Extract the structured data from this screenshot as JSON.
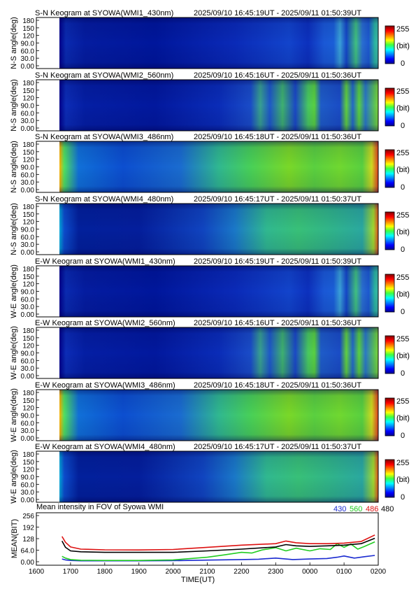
{
  "panels": [
    {
      "title": "S-N Keogram at SYOWA(WMI1_430nm)",
      "timerange": "2025/09/10 16:45:19UT - 2025/09/11 01:50:39UT",
      "ylabel": "N-S angle(deg)",
      "profile": "faint"
    },
    {
      "title": "S-N Keogram at SYOWA(WMI2_560nm)",
      "timerange": "2025/09/10 16:45:16UT - 2025/09/11 01:50:36UT",
      "ylabel": "N-S angle(deg)",
      "profile": "aurora"
    },
    {
      "title": "S-N Keogram at SYOWA(WMI3_486nm)",
      "timerange": "2025/09/10 16:45:18UT - 2025/09/11 01:50:36UT",
      "ylabel": "N-S angle(deg)",
      "profile": "bright"
    },
    {
      "title": "S-N Keogram at SYOWA(WMI4_480nm)",
      "timerange": "2025/09/10 16:45:17UT - 2025/09/11 01:50:37UT",
      "ylabel": "N-S angle(deg)",
      "profile": "medium"
    },
    {
      "title": "E-W Keogram at SYOWA(WMI1_430nm)",
      "timerange": "2025/09/10 16:45:19UT - 2025/09/11 01:50:39UT",
      "ylabel": "W-E angle(deg)",
      "profile": "faint"
    },
    {
      "title": "E-W Keogram at SYOWA(WMI2_560nm)",
      "timerange": "2025/09/10 16:45:16UT - 2025/09/11 01:50:36UT",
      "ylabel": "W-E angle(deg)",
      "profile": "aurora"
    },
    {
      "title": "E-W Keogram at SYOWA(WMI3_486nm)",
      "timerange": "2025/09/10 16:45:18UT - 2025/09/11 01:50:36UT",
      "ylabel": "W-E angle(deg)",
      "profile": "bright"
    },
    {
      "title": "E-W Keogram at SYOWA(WMI4_480nm)",
      "timerange": "2025/09/10 16:45:17UT - 2025/09/11 01:50:37UT",
      "ylabel": "W-E angle(deg)",
      "profile": "medium"
    }
  ],
  "keogram_yticks": [
    "0.00",
    "30.0",
    "60.0",
    "90.0",
    "120",
    "150",
    "180"
  ],
  "colorbar": {
    "max": "255",
    "unit": "(bit)",
    "min": "0"
  },
  "colors": {
    "430": "#1a2ad0",
    "560": "#22cc22",
    "486": "#dd1111",
    "480": "#000000"
  },
  "chart_data": {
    "type": "line",
    "title": "Mean intensity in FOV of Syowa WMI",
    "xlabel": "TIME(UT)",
    "ylabel": "MEAN(BIT)",
    "xticks": [
      "1600",
      "1700",
      "1800",
      "1900",
      "2000",
      "2100",
      "2200",
      "2300",
      "0000",
      "0100",
      "0200"
    ],
    "yticks": [
      "0.00",
      "64.0",
      "128",
      "192",
      "256"
    ],
    "xlim": [
      0,
      10
    ],
    "ylim": [
      0,
      256
    ],
    "series": [
      {
        "name": "430",
        "color": "#1a2ad0",
        "x": [
          0.75,
          0.85,
          1.0,
          1.3,
          2.0,
          3.0,
          4.0,
          5.0,
          6.0,
          6.5,
          7.0,
          7.5,
          8.0,
          8.5,
          8.8,
          9.0,
          9.3,
          9.6,
          9.9
        ],
        "y": [
          15,
          10,
          7,
          5,
          5,
          5,
          6,
          9,
          12,
          14,
          20,
          12,
          15,
          18,
          25,
          32,
          20,
          28,
          35
        ]
      },
      {
        "name": "560",
        "color": "#22cc22",
        "x": [
          0.75,
          0.85,
          1.0,
          1.3,
          2.0,
          3.0,
          4.0,
          5.0,
          5.5,
          6.0,
          6.3,
          6.6,
          7.0,
          7.3,
          7.6,
          8.0,
          8.3,
          8.6,
          8.8,
          9.0,
          9.2,
          9.4,
          9.6,
          9.9
        ],
        "y": [
          30,
          20,
          12,
          8,
          7,
          7,
          10,
          25,
          38,
          52,
          48,
          65,
          78,
          60,
          75,
          60,
          72,
          68,
          100,
          80,
          98,
          70,
          85,
          110
        ]
      },
      {
        "name": "486",
        "color": "#dd1111",
        "x": [
          0.75,
          0.85,
          1.0,
          1.3,
          2.0,
          3.0,
          4.0,
          5.0,
          6.0,
          7.0,
          7.3,
          7.6,
          8.0,
          8.5,
          9.0,
          9.5,
          9.9
        ],
        "y": [
          140,
          108,
          82,
          70,
          66,
          65,
          68,
          80,
          92,
          100,
          115,
          105,
          100,
          100,
          103,
          112,
          148
        ]
      },
      {
        "name": "480",
        "color": "#000000",
        "x": [
          0.75,
          0.85,
          1.0,
          1.3,
          2.0,
          3.0,
          4.0,
          5.0,
          6.0,
          7.0,
          7.3,
          7.6,
          8.0,
          8.5,
          9.0,
          9.5,
          9.9
        ],
        "y": [
          115,
          80,
          60,
          55,
          52,
          52,
          52,
          60,
          70,
          82,
          95,
          88,
          85,
          88,
          92,
          100,
          130
        ]
      }
    ]
  }
}
